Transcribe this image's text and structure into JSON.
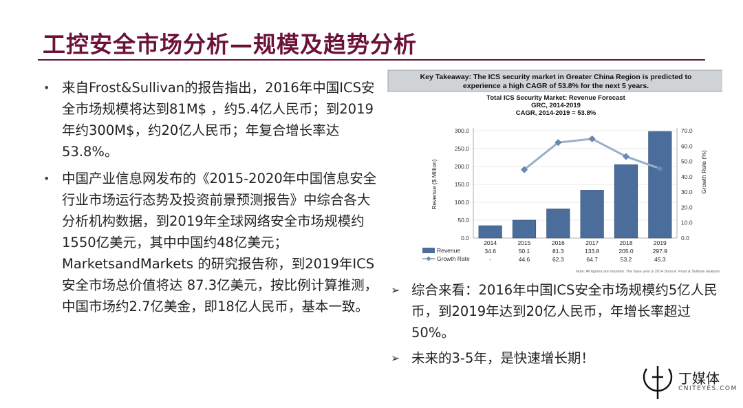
{
  "title": "工控安全市场分析—规模及趋势分析",
  "left_bullets": [
    "来自Frost&Sullivan的报告指出，2016年中国ICS安全市场规模将达到81M$ ，约5.4亿人民币；到2019年约300M$，约20亿人民币；年复合增长率达53.8%。",
    "中国产业信息网发布的《2015-2020年中国信息安全行业市场运行态势及投资前景预测报告》中综合各大分析机构数据，到2019年全球网络安全市场规模约1550亿美元，其中中国约48亿美元；MarketsandMarkets 的研究报告称，到2019年ICS安全市场总价值将达 87.3亿美元，按比例计算推测，中国市场约2.7亿美金，即18亿人民币，基本一致。"
  ],
  "bullet_glyph": "•",
  "arrow_glyph": "➢",
  "right_bullets": [
    "综合来看：2016年中国ICS安全市场规模约5亿人民币，到2019年达到20亿人民币，年增长率超过50%。",
    "未来的3-5年，是快速增长期！"
  ],
  "chart_data": {
    "type": "bar",
    "takeaway_line1": "Key Takeaway: The ICS security market in Greater China Region is predicted to",
    "takeaway_line2": "experience  a high CAGR of 53.8% for the next 5 years.",
    "title": "Total ICS Security Market: Revenue Forecast",
    "subtitle1": "GRC, 2014-2019",
    "subtitle2": "CAGR, 2014-2019 = 53.8%",
    "categories": [
      "2014",
      "2015",
      "2016",
      "2017",
      "2018",
      "2019"
    ],
    "series": [
      {
        "name": "Revenue",
        "type": "bar",
        "axis": "left",
        "values": [
          34.6,
          50.1,
          81.3,
          133.8,
          205.0,
          297.9
        ],
        "labels": [
          "34.6",
          "50.1",
          "81.3",
          "133.8",
          "205.0",
          "297.9"
        ]
      },
      {
        "name": "Growth Rate",
        "type": "line",
        "axis": "right",
        "values": [
          null,
          44.6,
          62.3,
          64.7,
          53.2,
          45.3
        ],
        "labels": [
          "-",
          "44.6",
          "62.3",
          "64.7",
          "53.2",
          "45.3"
        ]
      }
    ],
    "ylabel": "Revenue ($ Million)",
    "y2label": "Growth Rate (%)",
    "ylim": [
      0,
      300
    ],
    "y2lim": [
      0,
      70
    ],
    "yticks": [
      "0.0",
      "50.0",
      "100.0",
      "150.0",
      "200.0",
      "250.0",
      "300.0"
    ],
    "y2ticks": [
      "0.0",
      "10.0",
      "20.0",
      "30.0",
      "40.0",
      "50.0",
      "60.0",
      "70.0"
    ],
    "note": "Note: All figures are rounded. The base year is 2014 Source: Frost & Sullivan analysis",
    "colors": {
      "bar": "#4a6d9c",
      "line": "#9aaec7",
      "takeaway_bg": "#d0d3d6"
    }
  },
  "logo": {
    "text": "丁媒体",
    "sub": "CNITEYES.COM"
  }
}
